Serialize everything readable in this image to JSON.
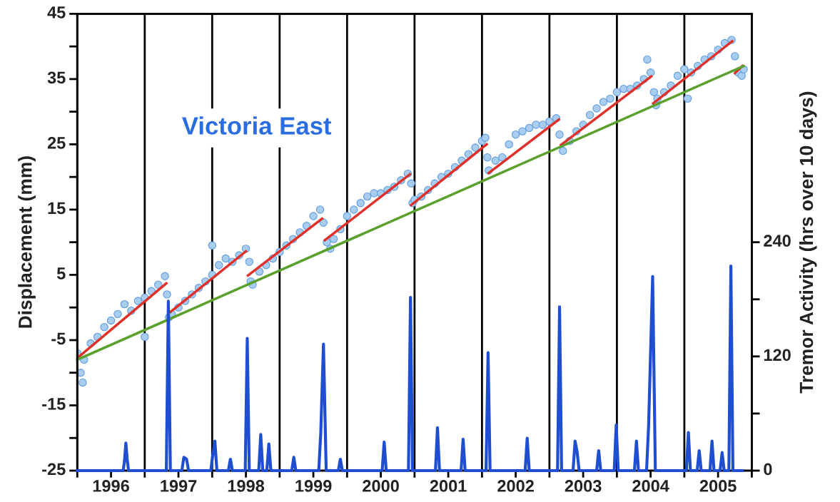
{
  "chart_data": {
    "type": "scatter",
    "ylabel": "Displacement (mm)",
    "y2label": "Tremor Activity (hrs over 10 days)",
    "annotations": [
      "Victoria East"
    ],
    "xlim": [
      1996,
      2006
    ],
    "xticks": [
      {
        "value": 1996,
        "label": null
      },
      {
        "value": 1996.5,
        "label": "1996"
      },
      {
        "value": 1997,
        "label": null
      },
      {
        "value": 1997.5,
        "label": "1997"
      },
      {
        "value": 1998,
        "label": null
      },
      {
        "value": 1998.5,
        "label": "1998"
      },
      {
        "value": 1999,
        "label": null
      },
      {
        "value": 1999.5,
        "label": "1999"
      },
      {
        "value": 2000,
        "label": null
      },
      {
        "value": 2000.5,
        "label": "2000"
      },
      {
        "value": 2001,
        "label": null
      },
      {
        "value": 2001.5,
        "label": "2001"
      },
      {
        "value": 2002,
        "label": null
      },
      {
        "value": 2002.5,
        "label": "2002"
      },
      {
        "value": 2003,
        "label": null
      },
      {
        "value": 2003.5,
        "label": "2003"
      },
      {
        "value": 2004,
        "label": null
      },
      {
        "value": 2004.5,
        "label": "2004"
      },
      {
        "value": 2005,
        "label": null
      },
      {
        "value": 2005.5,
        "label": "2005"
      },
      {
        "value": 2006,
        "label": null
      }
    ],
    "ylim": [
      -25,
      45
    ],
    "yticks": [
      -25,
      {
        "value": -20,
        "label": null
      },
      -15,
      {
        "value": -10,
        "label": null
      },
      -5,
      {
        "value": 0,
        "label": null
      },
      5,
      {
        "value": 10,
        "label": null
      },
      15,
      {
        "value": 20,
        "label": null
      },
      25,
      {
        "value": 30,
        "label": null
      },
      35,
      {
        "value": 40,
        "label": null
      },
      45
    ],
    "y2lim": [
      0,
      480
    ],
    "y2ticks": [
      0,
      {
        "value": 60,
        "label": null
      },
      120,
      {
        "value": 180,
        "label": null
      },
      240
    ],
    "grid": false,
    "legend": false,
    "ref_lines": [
      {
        "axis": "x",
        "value": 1997,
        "color": "#000000"
      },
      {
        "axis": "x",
        "value": 1998,
        "color": "#000000"
      },
      {
        "axis": "x",
        "value": 1999,
        "color": "#000000"
      },
      {
        "axis": "x",
        "value": 2000,
        "color": "#000000"
      },
      {
        "axis": "x",
        "value": 2001,
        "color": "#000000"
      },
      {
        "axis": "x",
        "value": 2002,
        "color": "#000000"
      },
      {
        "axis": "x",
        "value": 2003,
        "color": "#000000"
      },
      {
        "axis": "x",
        "value": 2004,
        "color": "#000000"
      },
      {
        "axis": "x",
        "value": 2005,
        "color": "#000000"
      }
    ],
    "series": [
      {
        "type": "line",
        "axis": "y2",
        "color": "#1f4fd0",
        "x": [
          1996.0,
          1996.68,
          1996.7,
          1996.72,
          1996.74,
          1996.76,
          1996.79,
          1996.82,
          1996.9,
          1997.32,
          1997.35,
          1997.38,
          1997.55,
          1997.58,
          1997.62,
          1997.65,
          1997.98,
          1998.0,
          1998.04,
          1998.07,
          1998.24,
          1998.27,
          1998.3,
          1998.49,
          1998.52,
          1998.55,
          1998.69,
          1998.72,
          1998.75,
          1998.81,
          1998.84,
          1998.87,
          1999.18,
          1999.21,
          1999.24,
          1999.58,
          1999.61,
          1999.65,
          1999.69,
          1999.87,
          1999.9,
          1999.93,
          2000.52,
          2000.55,
          2000.58,
          2000.91,
          2000.94,
          2000.97,
          2001.31,
          2001.34,
          2001.37,
          2001.69,
          2001.72,
          2001.75,
          2002.06,
          2002.09,
          2002.12,
          2002.64,
          2002.67,
          2002.7,
          2003.12,
          2003.15,
          2003.18,
          2003.35,
          2003.38,
          2003.41,
          2003.44,
          2003.7,
          2003.73,
          2003.76,
          2003.96,
          2003.99,
          2004.02,
          2004.26,
          2004.29,
          2004.32,
          2004.44,
          2004.47,
          2004.53,
          2004.57,
          2005.03,
          2005.06,
          2005.09,
          2005.19,
          2005.22,
          2005.25,
          2005.38,
          2005.41,
          2005.44,
          2005.53,
          2005.56,
          2005.59,
          2005.66,
          2005.69,
          2005.72,
          2005.86
        ],
        "values": [
          0,
          0,
          10,
          29,
          12,
          0,
          0,
          0,
          0,
          0,
          178,
          0,
          0,
          14,
          12,
          0,
          0,
          12,
          31,
          0,
          0,
          12,
          0,
          0,
          139,
          0,
          0,
          38,
          0,
          0,
          28,
          0,
          0,
          14,
          0,
          0,
          40,
          133,
          0,
          0,
          12,
          0,
          0,
          30,
          0,
          0,
          182,
          0,
          0,
          45,
          0,
          0,
          33,
          0,
          0,
          124,
          0,
          0,
          34,
          0,
          0,
          172,
          0,
          0,
          31,
          20,
          0,
          0,
          21,
          0,
          0,
          48,
          0,
          0,
          31,
          0,
          0,
          47,
          204,
          0,
          0,
          40,
          0,
          0,
          21,
          0,
          0,
          31,
          0,
          0,
          19,
          0,
          0,
          215,
          0,
          0
        ]
      },
      {
        "type": "scatter",
        "marker": "circle",
        "color": "#a8cdee",
        "x": [
          1996.0,
          1996.05,
          1996.08,
          1996.1,
          1996.2,
          1996.3,
          1996.4,
          1996.5,
          1996.6,
          1996.7,
          1996.8,
          1996.9,
          1997.0,
          1997.0,
          1997.1,
          1997.2,
          1997.3,
          1997.33,
          1997.36,
          1997.4,
          1997.5,
          1997.6,
          1997.7,
          1997.8,
          1997.9,
          1998.0,
          1998.0,
          1998.1,
          1998.2,
          1998.3,
          1998.4,
          1998.5,
          1998.55,
          1998.57,
          1998.6,
          1998.7,
          1998.8,
          1998.9,
          1999.0,
          1999.1,
          1999.2,
          1999.3,
          1999.4,
          1999.5,
          1999.6,
          1999.65,
          1999.7,
          1999.75,
          1999.8,
          1999.9,
          2000.0,
          2000.1,
          2000.2,
          2000.3,
          2000.4,
          2000.5,
          2000.6,
          2000.7,
          2000.8,
          2000.9,
          2000.95,
          2000.97,
          2001.0,
          2001.1,
          2001.2,
          2001.3,
          2001.4,
          2001.5,
          2001.6,
          2001.7,
          2001.8,
          2001.9,
          2002.0,
          2002.05,
          2002.08,
          2002.1,
          2002.2,
          2002.3,
          2002.4,
          2002.5,
          2002.6,
          2002.7,
          2002.8,
          2002.9,
          2003.0,
          2003.1,
          2003.15,
          2003.2,
          2003.3,
          2003.4,
          2003.5,
          2003.6,
          2003.7,
          2003.8,
          2003.9,
          2004.0,
          2004.1,
          2004.2,
          2004.3,
          2004.4,
          2004.45,
          2004.5,
          2004.55,
          2004.58,
          2004.6,
          2004.7,
          2004.8,
          2004.9,
          2005.0,
          2005.05,
          2005.1,
          2005.2,
          2005.3,
          2005.4,
          2005.5,
          2005.6,
          2005.7,
          2005.75,
          2005.8,
          2005.85,
          2005.88
        ],
        "values": [
          -7,
          -10,
          -11.5,
          -8,
          -5.5,
          -4.5,
          -3,
          -2,
          -1,
          0.5,
          -0.5,
          1,
          -4.5,
          1.5,
          2.5,
          3.5,
          4.8,
          2,
          -1.5,
          -1,
          0,
          1,
          2,
          3,
          4,
          5,
          9.5,
          6.5,
          7.5,
          7,
          8,
          9,
          7,
          4,
          3.5,
          5.5,
          6.5,
          7.5,
          8.5,
          9.5,
          10.5,
          11.5,
          12.5,
          14,
          15,
          13,
          10,
          9,
          10.5,
          12,
          14,
          15,
          16,
          17,
          17.5,
          17.5,
          18,
          18.5,
          19.5,
          20.5,
          19,
          16,
          16.5,
          17,
          18,
          19,
          20,
          20.5,
          21.5,
          22.5,
          23.5,
          24.5,
          25.5,
          26,
          23,
          21,
          22.5,
          23,
          25,
          26.5,
          27,
          27.5,
          28,
          28,
          28.5,
          29,
          26.5,
          24,
          25.5,
          27,
          28,
          29.5,
          30.5,
          31.5,
          32,
          33,
          33.5,
          33.5,
          34,
          35,
          38,
          36,
          33,
          31,
          32,
          33,
          34,
          35.5,
          36.5,
          32,
          36,
          37,
          38,
          38.5,
          39.5,
          40.5,
          41,
          38.5,
          36,
          35.5,
          36.5
        ]
      },
      {
        "type": "line",
        "color": "#e0302a",
        "x": [
          1996.03,
          1997.32,
          null,
          1997.38,
          1998.5,
          null,
          1998.53,
          1999.63,
          null,
          1999.67,
          2000.93,
          null,
          2000.95,
          2002.07,
          null,
          2002.1,
          2003.14,
          null,
          2003.17,
          2004.51,
          null,
          2004.54,
          2005.71,
          null,
          2005.75,
          2005.86
        ],
        "values": [
          -7.5,
          3.7,
          null,
          -0.7,
          8.6,
          null,
          4.9,
          13.6,
          null,
          10.3,
          20.4,
          null,
          15.7,
          25.0,
          null,
          20.6,
          28.8,
          null,
          24.9,
          35.4,
          null,
          31.3,
          40.8,
          null,
          35.9,
          37.0
        ]
      },
      {
        "type": "line",
        "color": "#5aa02c",
        "x": [
          1996.0,
          2005.88
        ],
        "values": [
          -8.0,
          37.0
        ]
      }
    ]
  }
}
